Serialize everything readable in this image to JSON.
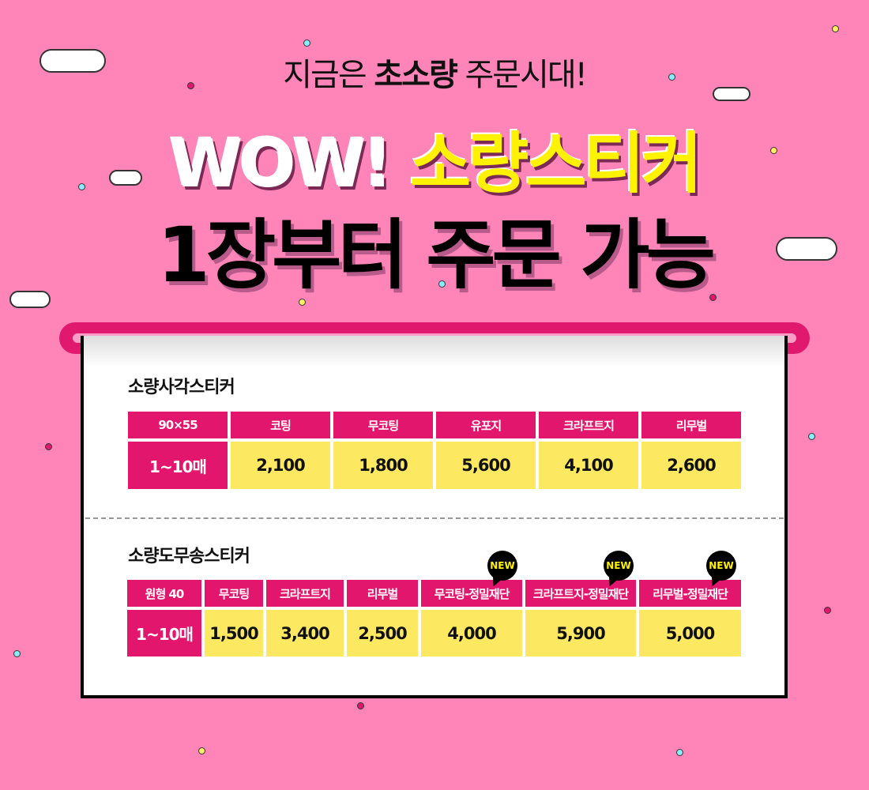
{
  "header": {
    "line1_pre": "지금은 ",
    "line1_bold": "초소량",
    "line1_post": " 주문시대!",
    "wow": "WOW! ",
    "wow_yellow": "소량스티커",
    "line3": "1장부터 주문 가능"
  },
  "table1": {
    "title": "소량사각스티커",
    "headers": [
      "90×55",
      "코팅",
      "무코팅",
      "유포지",
      "크라프트지",
      "리무벌"
    ],
    "row_label": "1~10매",
    "values": [
      "2,100",
      "1,800",
      "5,600",
      "4,100",
      "2,600"
    ]
  },
  "table2": {
    "title": "소량도무송스티커",
    "headers": [
      "원형 40",
      "무코팅",
      "크라프트지",
      "리무벌",
      "무코팅-정밀재단",
      "크라프트지-정밀재단",
      "리무벌-정밀재단"
    ],
    "row_label": "1~10매",
    "values": [
      "1,500",
      "3,400",
      "2,500",
      "4,000",
      "5,900",
      "5,000"
    ],
    "new_badge": "NEW"
  },
  "colors": {
    "background": "#ff85b8",
    "magenta": "#e3166e",
    "yellow": "#fde961",
    "title_yellow": "#fff200"
  }
}
